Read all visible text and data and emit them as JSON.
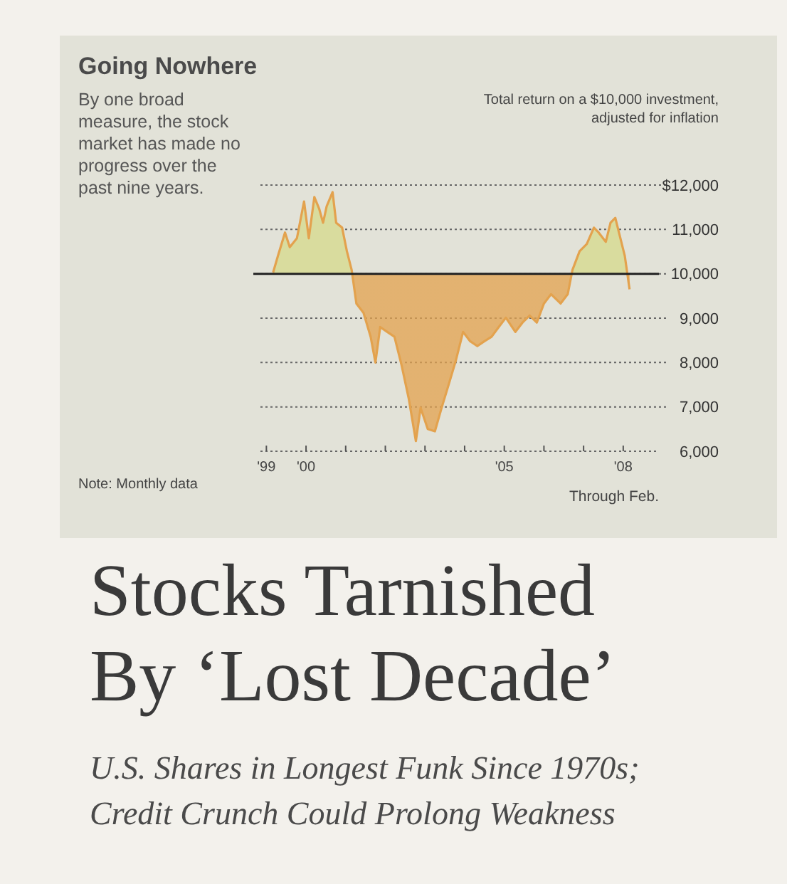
{
  "chart_data": {
    "type": "area",
    "title": "Going Nowhere",
    "subtitle": "By one broad measure, the stock market has made no progress over the past nine years.",
    "ylabel": "Total return on a $10,000 investment, adjusted for inflation",
    "annotations": [
      "Note: Monthly data",
      "Through Feb.",
      "Stocks Tarnished By ‘Lost Decade’",
      "U.S. Shares in Longest Funk Since 1970s; Credit Crunch Could Prolong Weakness"
    ],
    "x": [
      1999.17,
      1999.29,
      1999.47,
      1999.59,
      1999.77,
      1999.95,
      2000.07,
      2000.21,
      2000.33,
      2000.43,
      2000.52,
      2000.67,
      2000.76,
      2000.91,
      2001.03,
      2001.15,
      2001.27,
      2001.45,
      2001.63,
      2001.75,
      2001.87,
      2002.05,
      2002.23,
      2002.41,
      2002.59,
      2002.77,
      2002.89,
      2003.07,
      2003.25,
      2003.42,
      2003.6,
      2003.78,
      2003.96,
      2004.14,
      2004.32,
      2004.5,
      2004.68,
      2004.86,
      2005.04,
      2005.28,
      2005.46,
      2005.64,
      2005.82,
      2006.0,
      2006.18,
      2006.42,
      2006.6,
      2006.72,
      2006.9,
      2007.08,
      2007.26,
      2007.38,
      2007.56,
      2007.68,
      2007.8,
      2007.92,
      2008.04,
      2008.16
    ],
    "series": [
      {
        "color": "#e3a24e",
        "values": [
          10030,
          10400,
          10930,
          10600,
          10800,
          11630,
          10800,
          11730,
          11470,
          11150,
          11520,
          11840,
          11150,
          11040,
          10510,
          10090,
          9330,
          9120,
          8580,
          8000,
          8800,
          8690,
          8580,
          7940,
          7190,
          6230,
          6980,
          6500,
          6450,
          6980,
          7510,
          8050,
          8690,
          8480,
          8370,
          8480,
          8580,
          8800,
          9010,
          8690,
          8900,
          9060,
          8900,
          9330,
          9540,
          9330,
          9540,
          10090,
          10510,
          10670,
          11040,
          10930,
          10720,
          11150,
          11260,
          10830,
          10400,
          9650
        ]
      }
    ],
    "xlim": [
      1998.85,
      2008.9
    ],
    "xticks": [
      {
        "value": 1999,
        "label": "'99"
      },
      {
        "value": 2000,
        "label": "'00"
      },
      {
        "value": 2001,
        "label": null
      },
      {
        "value": 2002,
        "label": null
      },
      {
        "value": 2003,
        "label": null
      },
      {
        "value": 2004,
        "label": null
      },
      {
        "value": 2005,
        "label": "'05"
      },
      {
        "value": 2006,
        "label": null
      },
      {
        "value": 2007,
        "label": null
      },
      {
        "value": 2008,
        "label": "'08"
      }
    ],
    "ylim": [
      6000,
      12000
    ],
    "yticks": [
      {
        "value": 6000,
        "label": "6,000"
      },
      {
        "value": 7000,
        "label": "7,000"
      },
      {
        "value": 8000,
        "label": "8,000"
      },
      {
        "value": 9000,
        "label": "9,000"
      },
      {
        "value": 10000,
        "label": "10,000"
      },
      {
        "value": 11000,
        "label": "11,000"
      },
      {
        "value": 12000,
        "label": "$12,000"
      }
    ],
    "ref_lines": [
      {
        "axis": "y",
        "value": 10000,
        "color": "#222222"
      }
    ],
    "grid": "y"
  }
}
